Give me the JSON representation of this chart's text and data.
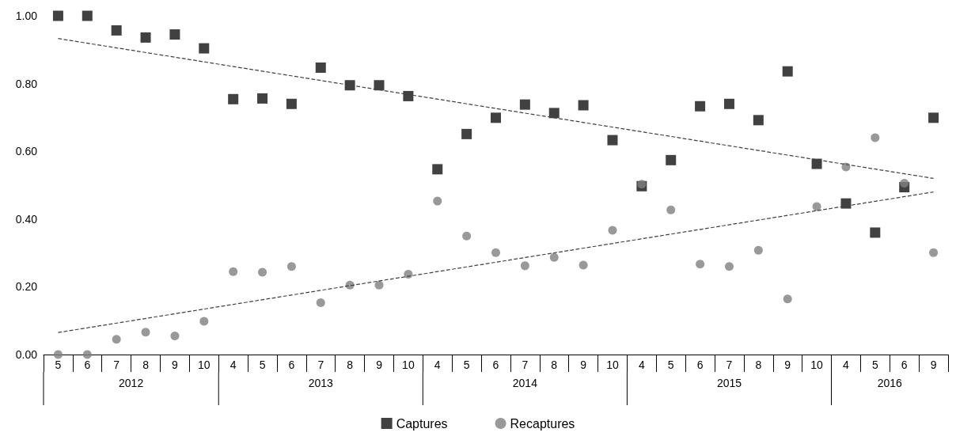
{
  "chart_data": {
    "type": "scatter",
    "categories": [
      "5",
      "6",
      "7",
      "8",
      "9",
      "10",
      "4",
      "5",
      "6",
      "7",
      "8",
      "9",
      "10",
      "4",
      "5",
      "6",
      "7",
      "8",
      "9",
      "10",
      "4",
      "5",
      "6",
      "7",
      "8",
      "9",
      "10",
      "4",
      "5",
      "6",
      "9"
    ],
    "annotations": [
      "2012",
      "2013",
      "2014",
      "2015",
      "2016"
    ],
    "series": [
      {
        "name": "Captures",
        "color": "#111111",
        "marker": "square",
        "values": [
          1.0,
          1.0,
          0.957,
          0.936,
          0.945,
          0.904,
          0.754,
          0.756,
          0.74,
          0.847,
          0.795,
          0.795,
          0.763,
          0.547,
          0.651,
          0.699,
          0.738,
          0.713,
          0.736,
          0.633,
          0.497,
          0.574,
          0.733,
          0.74,
          0.692,
          0.836,
          0.563,
          0.446,
          0.36,
          0.494,
          0.699
        ]
      },
      {
        "name": "Recaptures",
        "color": "#808080",
        "marker": "circle",
        "values": [
          0.0,
          0.0,
          0.045,
          0.066,
          0.055,
          0.098,
          0.245,
          0.243,
          0.26,
          0.153,
          0.205,
          0.205,
          0.237,
          0.453,
          0.35,
          0.301,
          0.262,
          0.287,
          0.264,
          0.367,
          0.503,
          0.427,
          0.267,
          0.26,
          0.308,
          0.164,
          0.437,
          0.554,
          0.64,
          0.506,
          0.301
        ]
      },
      {
        "type": "line",
        "color": "#404040",
        "line_style": "dashed",
        "values": [
          0.933,
          null,
          null,
          null,
          null,
          null,
          null,
          null,
          null,
          null,
          null,
          null,
          null,
          null,
          null,
          null,
          null,
          null,
          null,
          null,
          null,
          null,
          null,
          null,
          null,
          null,
          null,
          null,
          null,
          null,
          0.52
        ]
      },
      {
        "type": "line",
        "color": "#404040",
        "line_style": "dashed",
        "values": [
          0.065,
          null,
          null,
          null,
          null,
          null,
          null,
          null,
          null,
          null,
          null,
          null,
          null,
          null,
          null,
          null,
          null,
          null,
          null,
          null,
          null,
          null,
          null,
          null,
          null,
          null,
          null,
          null,
          null,
          null,
          0.48
        ]
      }
    ],
    "ylim": [
      0,
      1
    ],
    "yticks": [
      {
        "value": 0,
        "label": "0.00"
      },
      {
        "value": 0.2,
        "label": "0.20"
      },
      {
        "value": 0.4,
        "label": "0.40"
      },
      {
        "value": 0.6,
        "label": "0.60"
      },
      {
        "value": 0.8,
        "label": "0.80"
      },
      {
        "value": 1,
        "label": "1.00"
      }
    ],
    "grid": false,
    "legend": "bottom"
  }
}
